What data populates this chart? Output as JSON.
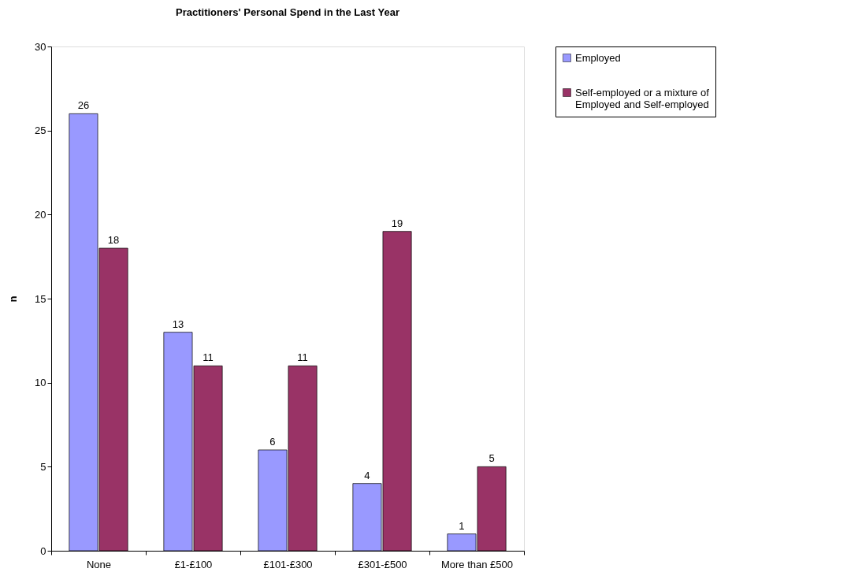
{
  "chart_data": {
    "type": "bar",
    "title": "Practitioners' Personal Spend in the Last Year",
    "ylabel": "n",
    "categories": [
      "None",
      "£1-£100",
      "£101-£300",
      "£301-£500",
      "More than £500"
    ],
    "series": [
      {
        "name": "Employed",
        "color": "#9999ff",
        "values": [
          26,
          13,
          6,
          4,
          1
        ]
      },
      {
        "name": "Self-employed or a mixture of Employed and Self-employed",
        "color": "#993366",
        "values": [
          18,
          11,
          11,
          19,
          5
        ]
      }
    ],
    "ylim": [
      0,
      30
    ],
    "yticks": [
      0,
      5,
      10,
      15,
      20,
      25,
      30
    ],
    "grid": false,
    "legend": "right",
    "data_labels": true
  }
}
